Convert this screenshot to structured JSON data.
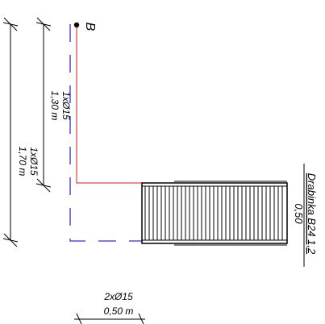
{
  "drawing": {
    "point_label": "B",
    "element_title": "Drabinka B24 1,2",
    "element_width": "0,50",
    "dim_outer": {
      "count": "1xØ15",
      "length": "1,70 m"
    },
    "dim_inner": {
      "count": "1xØ15",
      "length": "1,30 m"
    },
    "dim_bottom": {
      "count": "2xØ15",
      "length": "0,50 m"
    }
  },
  "colors": {
    "line": "#000000",
    "red_line": "#e01818",
    "blue_dash": "#3030d0"
  },
  "icons": [
    "point-dot-icon",
    "ladder-icon"
  ]
}
